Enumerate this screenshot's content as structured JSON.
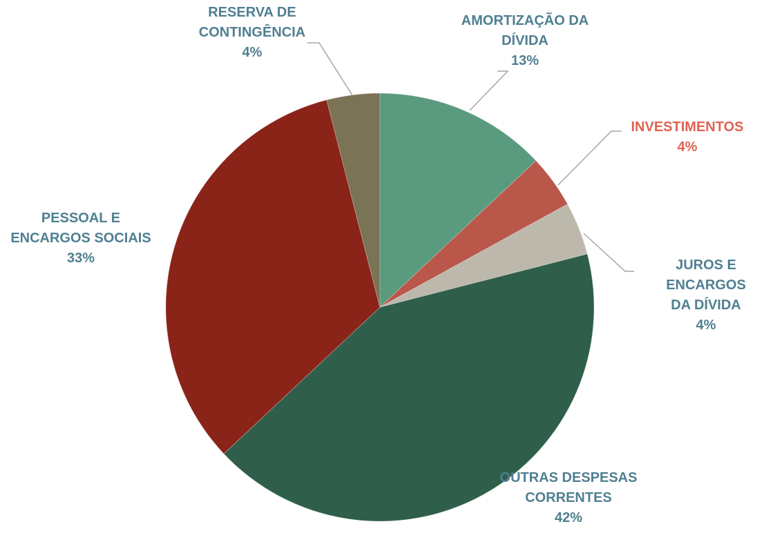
{
  "chart_data": {
    "type": "pie",
    "categories": [
      "AMORTIZAÇÃO DA\nDÍVIDA",
      "INVESTIMENTOS",
      "JUROS E ENCARGOS\nDA DÍVIDA",
      "OUTRAS DESPESAS\nCORRENTES",
      "PESSOAL E\nENCARGOS SOCIAIS",
      "RESERVA DE\nCONTINGÊNCIA"
    ],
    "values": [
      13,
      4,
      4,
      42,
      33,
      4
    ],
    "value_labels": [
      "13%",
      "4%",
      "4%",
      "42%",
      "33%",
      "4%"
    ],
    "colors": [
      "#5a9a7e",
      "#b9574a",
      "#bdb8ac",
      "#2f5e4a",
      "#8a2318",
      "#7a7355"
    ],
    "label_colors": [
      "#4f7f91",
      "#e06352",
      "#4f7f91",
      "#4f7f91",
      "#4f7f91",
      "#4f7f91"
    ]
  }
}
